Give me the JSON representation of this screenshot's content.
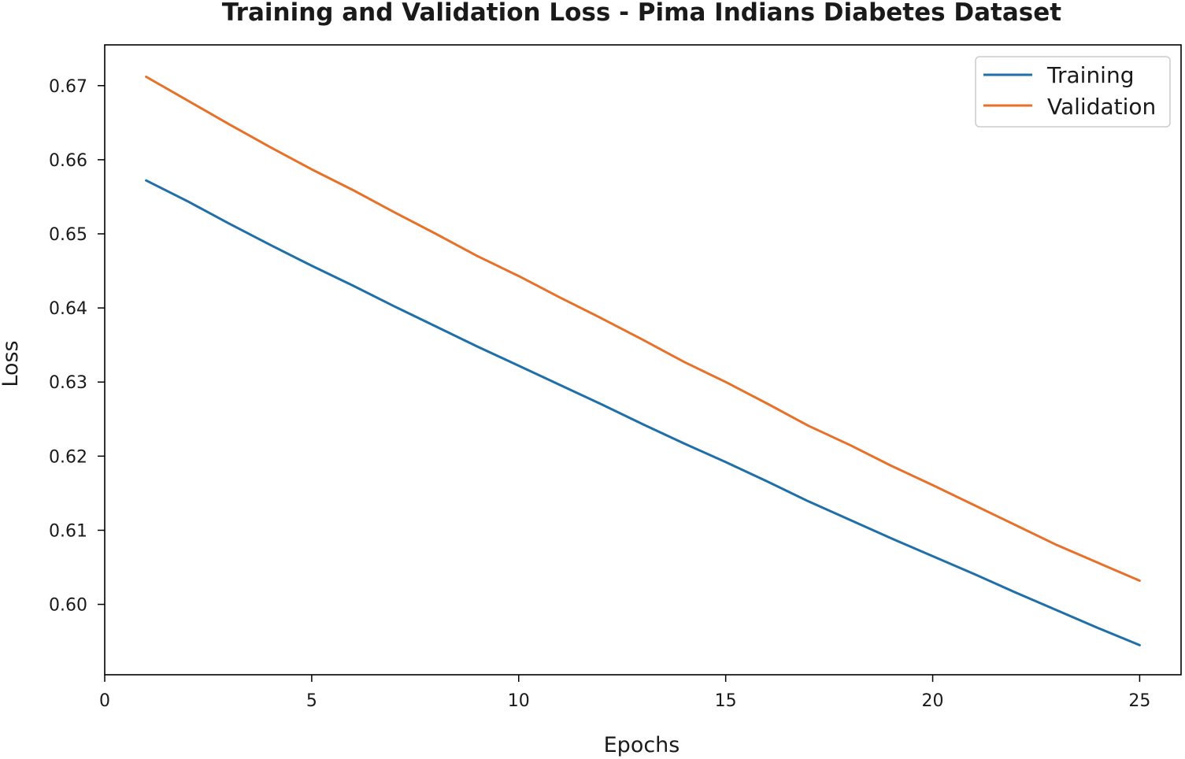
{
  "chart_data": {
    "type": "line",
    "title": "Training and Validation Loss - Pima Indians Diabetes Dataset",
    "xlabel": "Epochs",
    "ylabel": "Loss",
    "xlim": [
      0,
      26
    ],
    "ylim": [
      0.5905,
      0.6755
    ],
    "x_ticks": [
      0,
      5,
      10,
      15,
      20,
      25
    ],
    "x_tick_labels": [
      "0",
      "5",
      "10",
      "15",
      "20",
      "25"
    ],
    "y_ticks": [
      0.6,
      0.61,
      0.62,
      0.63,
      0.64,
      0.65,
      0.66,
      0.67
    ],
    "y_tick_labels": [
      "0.60",
      "0.61",
      "0.62",
      "0.63",
      "0.64",
      "0.65",
      "0.66",
      "0.67"
    ],
    "grid": false,
    "legend_position": "top-right",
    "x": [
      1,
      2,
      3,
      4,
      5,
      6,
      7,
      8,
      9,
      10,
      11,
      12,
      13,
      14,
      15,
      16,
      17,
      18,
      19,
      20,
      21,
      22,
      23,
      24,
      25
    ],
    "series": [
      {
        "name": "Training",
        "color": "#1f6fa8",
        "values": [
          0.6572,
          0.6544,
          0.6514,
          0.6485,
          0.6457,
          0.643,
          0.6402,
          0.6375,
          0.6348,
          0.6322,
          0.6296,
          0.627,
          0.6243,
          0.6217,
          0.6192,
          0.6166,
          0.6139,
          0.6114,
          0.6089,
          0.6065,
          0.6041,
          0.6016,
          0.5992,
          0.5968,
          0.5945
        ]
      },
      {
        "name": "Validation",
        "color": "#e8712a",
        "values": [
          0.6712,
          0.668,
          0.6648,
          0.6617,
          0.6587,
          0.6559,
          0.6529,
          0.65,
          0.647,
          0.6443,
          0.6414,
          0.6386,
          0.6357,
          0.6327,
          0.63,
          0.6271,
          0.6241,
          0.6215,
          0.6187,
          0.6161,
          0.6134,
          0.6107,
          0.608,
          0.6056,
          0.6032
        ]
      }
    ]
  }
}
